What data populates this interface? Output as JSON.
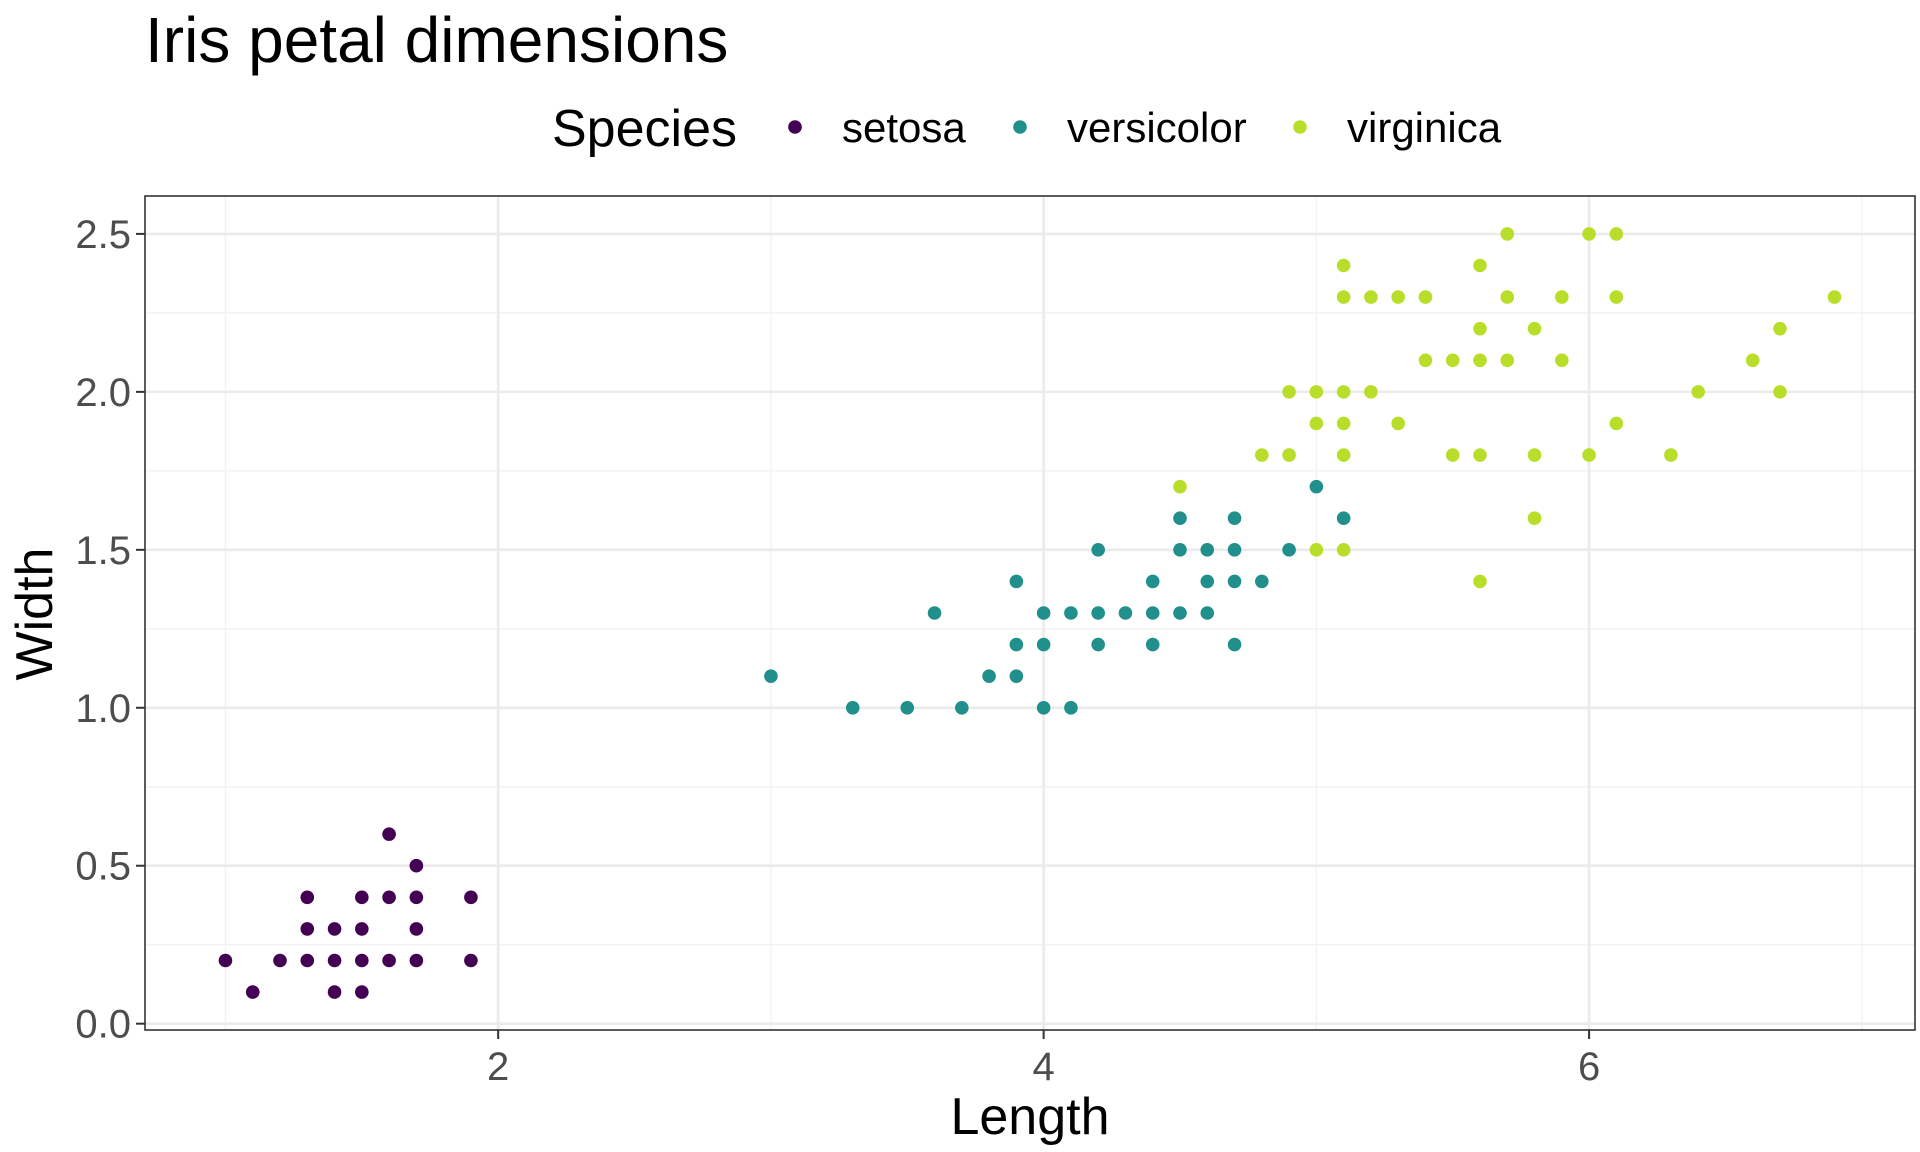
{
  "chart_data": {
    "type": "scatter",
    "title": "Iris petal dimensions",
    "xlabel": "Length",
    "ylabel": "Width",
    "xlim": [
      0.705,
      7.195
    ],
    "ylim": [
      -0.02,
      2.62
    ],
    "x_ticks": [
      2,
      4,
      6
    ],
    "x_tick_labels": [
      "2",
      "4",
      "6"
    ],
    "x_minor_ticks": [
      1,
      3,
      5,
      7
    ],
    "y_ticks": [
      0.0,
      0.5,
      1.0,
      1.5,
      2.0,
      2.5
    ],
    "y_tick_labels": [
      "0.0",
      "0.5",
      "1.0",
      "1.5",
      "2.0",
      "2.5"
    ],
    "y_minor_ticks": [
      0.25,
      0.75,
      1.25,
      1.75,
      2.25
    ],
    "grid": true,
    "legend": {
      "title": "Species",
      "position": "top"
    },
    "series": [
      {
        "name": "setosa",
        "color": "#440154",
        "points": [
          [
            1.0,
            0.2
          ],
          [
            1.1,
            0.1
          ],
          [
            1.2,
            0.2
          ],
          [
            1.3,
            0.2
          ],
          [
            1.3,
            0.3
          ],
          [
            1.3,
            0.4
          ],
          [
            1.4,
            0.1
          ],
          [
            1.4,
            0.2
          ],
          [
            1.4,
            0.3
          ],
          [
            1.5,
            0.1
          ],
          [
            1.5,
            0.2
          ],
          [
            1.5,
            0.3
          ],
          [
            1.5,
            0.4
          ],
          [
            1.6,
            0.2
          ],
          [
            1.6,
            0.4
          ],
          [
            1.6,
            0.6
          ],
          [
            1.7,
            0.2
          ],
          [
            1.7,
            0.3
          ],
          [
            1.7,
            0.4
          ],
          [
            1.7,
            0.5
          ],
          [
            1.9,
            0.2
          ],
          [
            1.9,
            0.4
          ]
        ]
      },
      {
        "name": "versicolor",
        "color": "#21908C",
        "points": [
          [
            3.0,
            1.1
          ],
          [
            3.3,
            1.0
          ],
          [
            3.5,
            1.0
          ],
          [
            3.6,
            1.3
          ],
          [
            3.7,
            1.0
          ],
          [
            3.8,
            1.1
          ],
          [
            3.9,
            1.1
          ],
          [
            3.9,
            1.2
          ],
          [
            3.9,
            1.4
          ],
          [
            4.0,
            1.0
          ],
          [
            4.0,
            1.2
          ],
          [
            4.0,
            1.3
          ],
          [
            4.1,
            1.0
          ],
          [
            4.1,
            1.3
          ],
          [
            4.2,
            1.2
          ],
          [
            4.2,
            1.3
          ],
          [
            4.2,
            1.5
          ],
          [
            4.3,
            1.3
          ],
          [
            4.4,
            1.2
          ],
          [
            4.4,
            1.3
          ],
          [
            4.4,
            1.4
          ],
          [
            4.5,
            1.3
          ],
          [
            4.5,
            1.5
          ],
          [
            4.5,
            1.6
          ],
          [
            4.6,
            1.3
          ],
          [
            4.6,
            1.4
          ],
          [
            4.6,
            1.5
          ],
          [
            4.7,
            1.2
          ],
          [
            4.7,
            1.4
          ],
          [
            4.7,
            1.5
          ],
          [
            4.7,
            1.6
          ],
          [
            4.8,
            1.4
          ],
          [
            4.9,
            1.5
          ],
          [
            5.0,
            1.7
          ],
          [
            5.1,
            1.6
          ]
        ]
      },
      {
        "name": "virginica",
        "color": "#B8DE29",
        "points": [
          [
            4.5,
            1.7
          ],
          [
            4.8,
            1.8
          ],
          [
            4.9,
            1.8
          ],
          [
            4.9,
            2.0
          ],
          [
            5.0,
            1.5
          ],
          [
            5.0,
            1.9
          ],
          [
            5.0,
            2.0
          ],
          [
            5.1,
            1.5
          ],
          [
            5.1,
            1.8
          ],
          [
            5.1,
            1.9
          ],
          [
            5.1,
            2.0
          ],
          [
            5.1,
            2.3
          ],
          [
            5.1,
            2.4
          ],
          [
            5.2,
            2.0
          ],
          [
            5.2,
            2.3
          ],
          [
            5.3,
            1.9
          ],
          [
            5.3,
            2.3
          ],
          [
            5.4,
            2.1
          ],
          [
            5.4,
            2.3
          ],
          [
            5.5,
            1.8
          ],
          [
            5.5,
            2.1
          ],
          [
            5.6,
            1.4
          ],
          [
            5.6,
            1.8
          ],
          [
            5.6,
            2.1
          ],
          [
            5.6,
            2.2
          ],
          [
            5.6,
            2.4
          ],
          [
            5.7,
            2.1
          ],
          [
            5.7,
            2.3
          ],
          [
            5.7,
            2.5
          ],
          [
            5.8,
            1.6
          ],
          [
            5.8,
            1.8
          ],
          [
            5.8,
            2.2
          ],
          [
            5.9,
            2.1
          ],
          [
            5.9,
            2.3
          ],
          [
            6.0,
            1.8
          ],
          [
            6.0,
            2.5
          ],
          [
            6.1,
            1.9
          ],
          [
            6.1,
            2.3
          ],
          [
            6.1,
            2.5
          ],
          [
            6.3,
            1.8
          ],
          [
            6.4,
            2.0
          ],
          [
            6.6,
            2.1
          ],
          [
            6.7,
            2.0
          ],
          [
            6.7,
            2.2
          ],
          [
            6.9,
            2.3
          ]
        ]
      }
    ]
  }
}
